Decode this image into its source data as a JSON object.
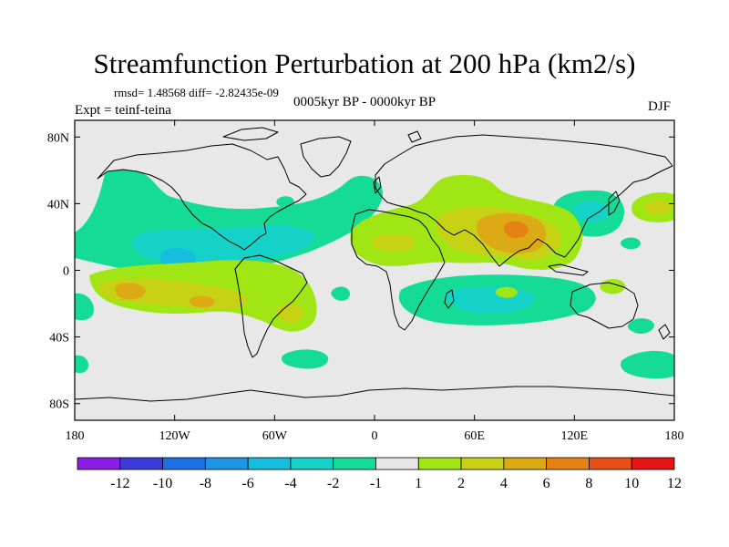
{
  "title": "Streamfunction Perturbation at 200 hPa (km2/s)",
  "stats_line": "rmsd= 1.48568 diff= -2.82435e-09",
  "experiment": "Expt = teinf-teina",
  "period": "0005kyr BP - 0000kyr BP",
  "season": "DJF",
  "map": {
    "projection": "cylindrical-equidistant",
    "lon_range": [
      -180,
      180
    ],
    "lat_range": [
      -90,
      90
    ],
    "x_ticks": [
      {
        "value": -180,
        "label": "180"
      },
      {
        "value": -120,
        "label": "120W"
      },
      {
        "value": -60,
        "label": "60W"
      },
      {
        "value": 0,
        "label": "0"
      },
      {
        "value": 60,
        "label": "60E"
      },
      {
        "value": 120,
        "label": "120E"
      },
      {
        "value": 180,
        "label": "180"
      }
    ],
    "y_ticks": [
      {
        "value": 80,
        "label": "80N"
      },
      {
        "value": 40,
        "label": "40N"
      },
      {
        "value": 0,
        "label": "0"
      },
      {
        "value": -40,
        "label": "40S"
      },
      {
        "value": -80,
        "label": "80S"
      }
    ],
    "background_color": "#e8e8e8"
  },
  "colorbar": {
    "labels": [
      "-12",
      "-10",
      "-8",
      "-6",
      "-4",
      "-2",
      "-1",
      "1",
      "2",
      "4",
      "6",
      "8",
      "10",
      "12"
    ],
    "colors": [
      "#8a1ee6",
      "#3c3cdc",
      "#1e6ee6",
      "#1e96e6",
      "#14bedc",
      "#14d2c8",
      "#14dc96",
      "#e6e6e6",
      "#a0e614",
      "#c8d214",
      "#dcaa14",
      "#e68214",
      "#e65014",
      "#e61414"
    ]
  },
  "chart_data": {
    "type": "heatmap",
    "title": "Streamfunction Perturbation at 200 hPa (km2/s)",
    "units": "km2/s",
    "levels": [
      -12,
      -10,
      -8,
      -6,
      -4,
      -2,
      -1,
      1,
      2,
      4,
      6,
      8,
      10,
      12
    ],
    "features": [
      {
        "name": "N Pacific / Alaska negative band",
        "lon": [
          -170,
          -120
        ],
        "lat": [
          20,
          50
        ],
        "value": -2
      },
      {
        "name": "Central Pacific minimum",
        "lon": [
          -160,
          -140
        ],
        "lat": [
          0,
          10
        ],
        "value": -4
      },
      {
        "name": "N America / Atlantic negative band",
        "lon": [
          -130,
          -10
        ],
        "lat": [
          20,
          45
        ],
        "value": -2
      },
      {
        "name": "S Pacific positive",
        "lon": [
          -170,
          -90
        ],
        "lat": [
          -40,
          -5
        ],
        "value": 2
      },
      {
        "name": "S Pacific maximum",
        "lon": [
          -165,
          -150
        ],
        "lat": [
          -20,
          -10
        ],
        "value": 4
      },
      {
        "name": "S America positive",
        "lon": [
          -70,
          -20
        ],
        "lat": [
          -40,
          -5
        ],
        "value": 2
      },
      {
        "name": "N Africa / Asia positive",
        "lon": [
          -10,
          140
        ],
        "lat": [
          5,
          50
        ],
        "value": 2
      },
      {
        "name": "S Asia maximum",
        "lon": [
          75,
          100
        ],
        "lat": [
          15,
          35
        ],
        "value": 6
      },
      {
        "name": "Indian Ocean negative",
        "lon": [
          10,
          120
        ],
        "lat": [
          -30,
          -10
        ],
        "value": -2
      },
      {
        "name": "NW Pacific negative",
        "lon": [
          110,
          140
        ],
        "lat": [
          30,
          50
        ],
        "value": -2
      },
      {
        "name": "N Pacific positive",
        "lon": [
          150,
          180
        ],
        "lat": [
          30,
          45
        ],
        "value": 2
      },
      {
        "name": "Southern Ocean negative",
        "lon": [
          150,
          180
        ],
        "lat": [
          -60,
          -45
        ],
        "value": -2
      }
    ]
  }
}
